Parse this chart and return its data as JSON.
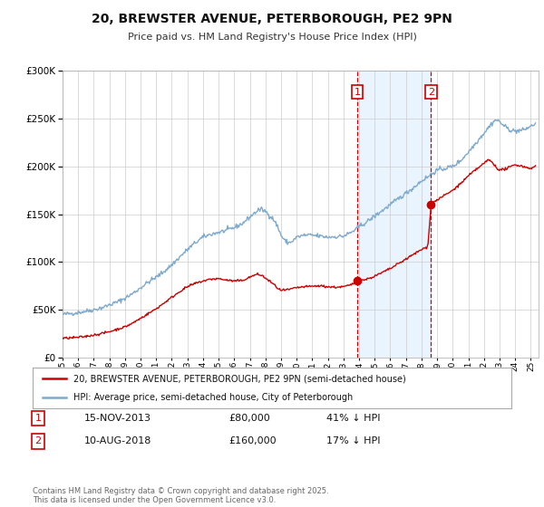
{
  "title_line1": "20, BREWSTER AVENUE, PETERBOROUGH, PE2 9PN",
  "title_line2": "Price paid vs. HM Land Registry's House Price Index (HPI)",
  "background_color": "#ffffff",
  "plot_bg_color": "#ffffff",
  "grid_color": "#cccccc",
  "red_line_color": "#cc0000",
  "blue_line_color": "#7faacc",
  "shade_color": "#ddeeff",
  "marker1_date_x": 2013.88,
  "marker2_date_x": 2018.61,
  "sale1_price_y": 80000,
  "sale2_price_y": 160000,
  "sale1_date": "15-NOV-2013",
  "sale1_price": "£80,000",
  "sale1_note": "41% ↓ HPI",
  "sale2_date": "10-AUG-2018",
  "sale2_price": "£160,000",
  "sale2_note": "17% ↓ HPI",
  "legend_line1": "20, BREWSTER AVENUE, PETERBOROUGH, PE2 9PN (semi-detached house)",
  "legend_line2": "HPI: Average price, semi-detached house, City of Peterborough",
  "footer": "Contains HM Land Registry data © Crown copyright and database right 2025.\nThis data is licensed under the Open Government Licence v3.0.",
  "ylim": [
    0,
    300000
  ],
  "xlim_start": 1995.0,
  "xlim_end": 2025.5
}
